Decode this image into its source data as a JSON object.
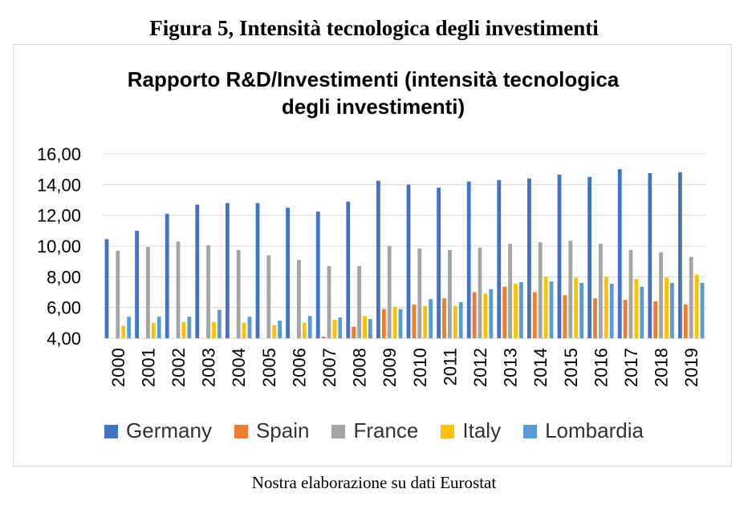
{
  "figure_caption": "Figura 5, Intensità tecnologica degli investimenti",
  "source_note": "Nostra elaborazione su dati Eurostat",
  "chart_data": {
    "type": "bar",
    "title_lines": [
      "Rapporto R&D/Investimenti (intensità tecnologica",
      "degli investimenti)"
    ],
    "xlabel": "",
    "ylabel": "",
    "ylim": [
      4,
      16
    ],
    "yticks": [
      "4,00",
      "6,00",
      "8,00",
      "10,00",
      "12,00",
      "14,00",
      "16,00"
    ],
    "ytick_values": [
      4,
      6,
      8,
      10,
      12,
      14,
      16
    ],
    "grid": true,
    "legend_position": "bottom",
    "categories": [
      "2000",
      "2001",
      "2002",
      "2003",
      "2004",
      "2005",
      "2006",
      "2007",
      "2008",
      "2009",
      "2010",
      "2011",
      "2012",
      "2013",
      "2014",
      "2015",
      "2016",
      "2017",
      "2018",
      "2019"
    ],
    "series": [
      {
        "name": "Germany",
        "color": "#4472c4",
        "values": [
          10.45,
          11.0,
          12.1,
          12.7,
          12.8,
          12.8,
          12.5,
          12.25,
          12.9,
          14.25,
          14.0,
          13.8,
          14.2,
          14.3,
          14.4,
          14.65,
          14.5,
          15.0,
          14.75,
          14.8
        ]
      },
      {
        "name": "Spain",
        "color": "#ed7d31",
        "values": [
          null,
          null,
          null,
          null,
          null,
          null,
          null,
          4.1,
          4.75,
          5.9,
          6.2,
          6.6,
          7.0,
          7.35,
          7.0,
          6.8,
          6.6,
          6.5,
          6.4,
          6.2
        ]
      },
      {
        "name": "France",
        "color": "#a5a5a5",
        "values": [
          9.7,
          9.95,
          10.3,
          10.05,
          9.75,
          9.4,
          9.1,
          8.7,
          8.7,
          10.0,
          9.85,
          9.75,
          9.9,
          10.15,
          10.25,
          10.35,
          10.15,
          9.75,
          9.6,
          9.3
        ]
      },
      {
        "name": "Italy",
        "color": "#ffc000",
        "values": [
          4.8,
          5.0,
          5.05,
          5.05,
          5.0,
          4.85,
          5.0,
          5.2,
          5.45,
          6.05,
          6.1,
          6.1,
          6.9,
          7.55,
          8.0,
          7.95,
          8.0,
          7.85,
          7.95,
          8.15
        ]
      },
      {
        "name": "Lombardia",
        "color": "#5b9bd5",
        "values": [
          5.4,
          5.4,
          5.4,
          5.85,
          5.4,
          5.15,
          5.45,
          5.35,
          5.25,
          5.9,
          6.55,
          6.35,
          7.2,
          7.65,
          7.7,
          7.6,
          7.55,
          7.35,
          7.6,
          7.6
        ]
      }
    ]
  }
}
